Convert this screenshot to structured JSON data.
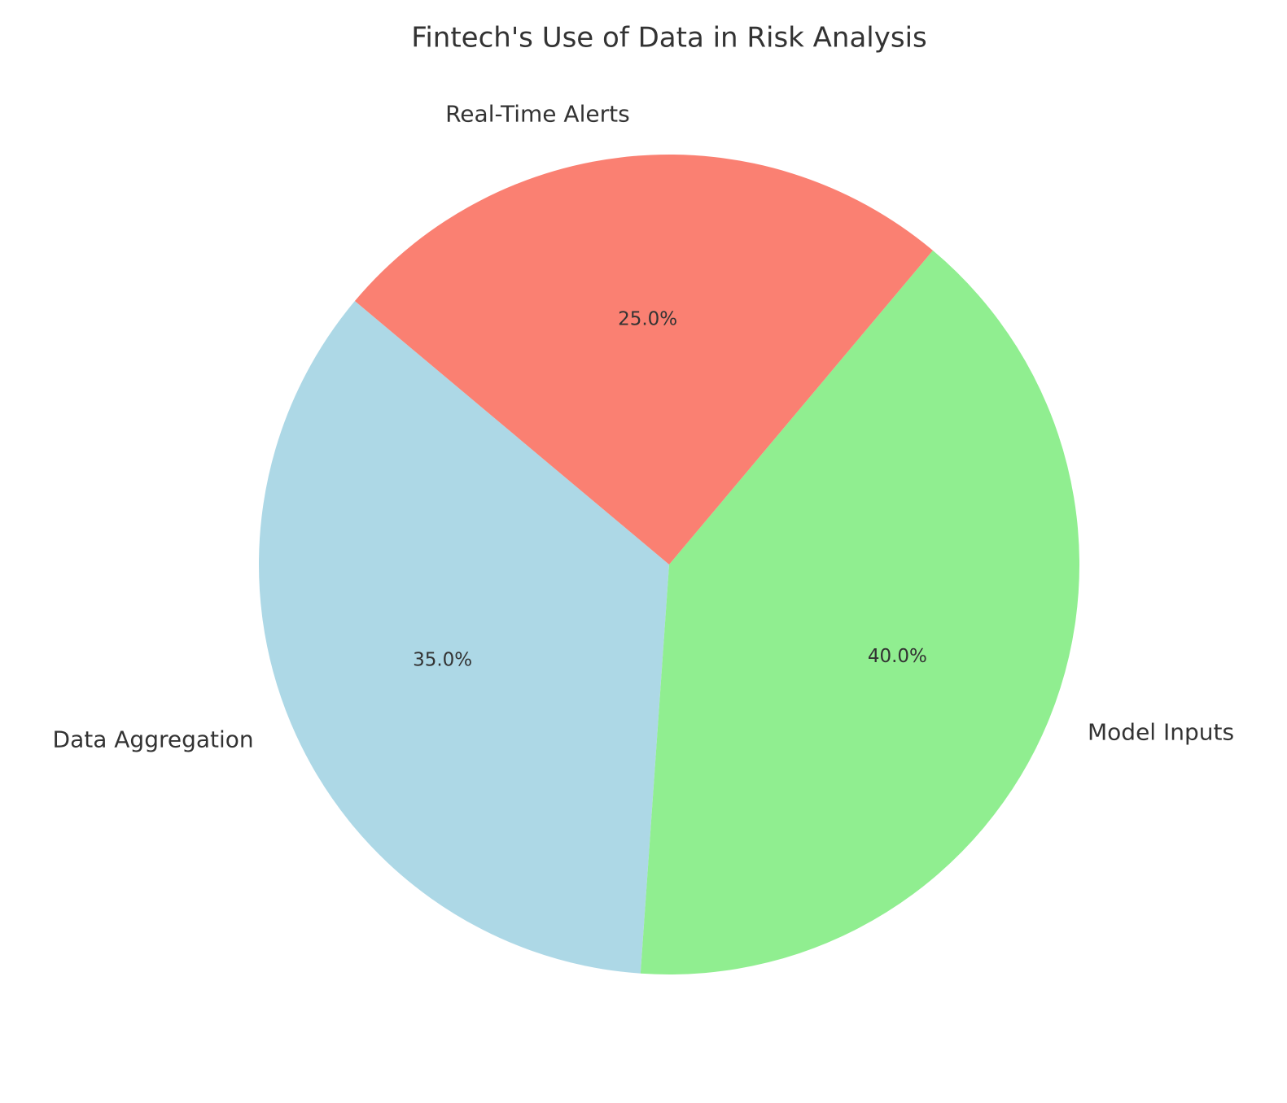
{
  "chart_data": {
    "type": "pie",
    "title": "Fintech's Use of Data in Risk Analysis",
    "slices": [
      {
        "label": "Data Aggregation",
        "value": 35.0,
        "pct_text": "35.0%",
        "color": "#ADD8E6"
      },
      {
        "label": "Model Inputs",
        "value": 40.0,
        "pct_text": "40.0%",
        "color": "#90EE90"
      },
      {
        "label": "Real-Time Alerts",
        "value": 25.0,
        "pct_text": "25.0%",
        "color": "#FA8072"
      }
    ],
    "start_angle_deg": 140,
    "direction": "counterclockwise",
    "legend": "none"
  }
}
